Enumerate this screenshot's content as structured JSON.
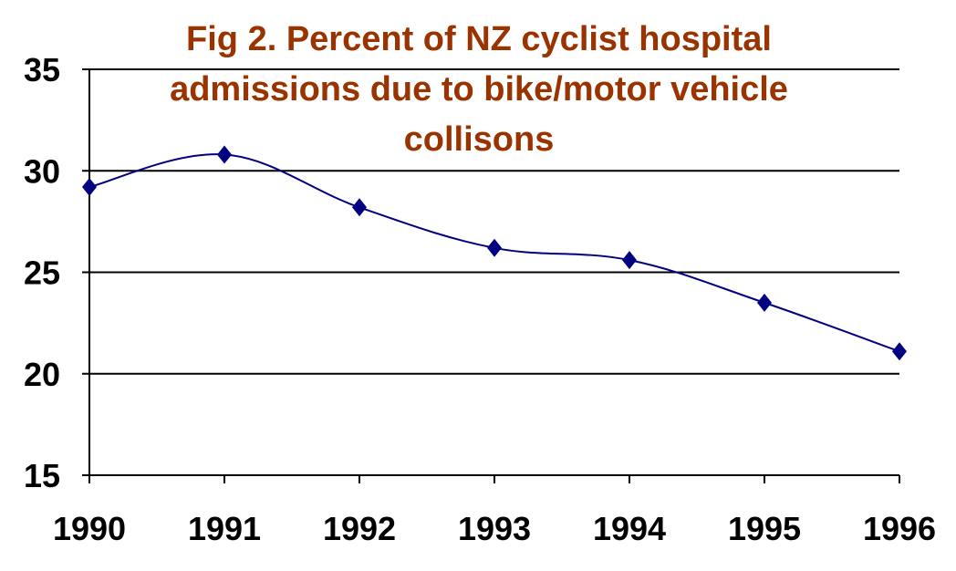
{
  "colors": {
    "title": "#993300",
    "series_line": "#000080",
    "marker": "#000080",
    "axis": "#000000",
    "grid": "#000000",
    "background": "#ffffff"
  },
  "chart_data": {
    "type": "line",
    "title": "Fig 2.  Percent of NZ cyclist hospital admissions due to bike/motor vehicle collisons",
    "title_lines": [
      "Fig 2.  Percent of NZ cyclist hospital",
      "admissions due to bike/motor vehicle",
      "collisons"
    ],
    "xlabel": "",
    "ylabel": "",
    "x": [
      1990,
      1991,
      1992,
      1993,
      1994,
      1995,
      1996
    ],
    "x_tick_labels": [
      "1990",
      "1991",
      "1992",
      "1993",
      "1994",
      "1995",
      "1996"
    ],
    "series": [
      {
        "values": [
          29.2,
          30.8,
          28.2,
          26.2,
          25.6,
          23.5,
          21.1
        ],
        "marker": "diamond",
        "smooth": true
      }
    ],
    "ylim": [
      15,
      35
    ],
    "y_ticks": [
      15,
      20,
      25,
      30,
      35
    ],
    "y_tick_labels": [
      "15",
      "20",
      "25",
      "30",
      "35"
    ],
    "grid": "horizontal",
    "legend": "none"
  }
}
